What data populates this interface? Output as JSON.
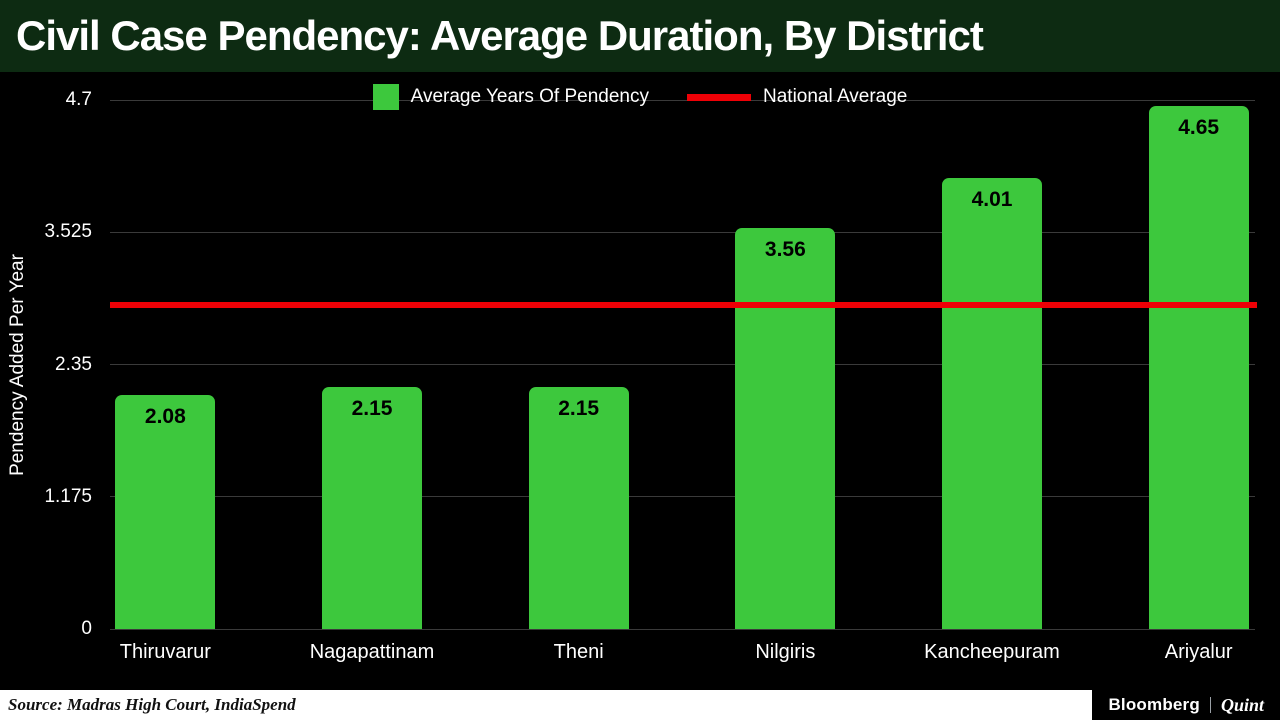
{
  "header": {
    "title": "Civil Case Pendency: Average Duration, By District"
  },
  "legend": {
    "bar_label": "Average Years Of Pendency",
    "line_label": "National Average"
  },
  "chart_data": {
    "type": "bar",
    "title": "Civil Case Pendency: Average Duration, By District",
    "ylabel": "Pendency Added Per Year",
    "categories": [
      "Thiruvarur",
      "Nagapattinam",
      "Theni",
      "Nilgiris",
      "Kancheepuram",
      "Ariyalur"
    ],
    "values": [
      2.08,
      2.15,
      2.15,
      3.56,
      4.01,
      4.65
    ],
    "value_labels": [
      "2.08",
      "2.15",
      "2.15",
      "3.56",
      "4.01",
      "4.65"
    ],
    "national_average": 2.88,
    "ylim": [
      0,
      4.7
    ],
    "ytick_values": [
      0,
      1.175,
      2.35,
      3.525,
      4.7
    ],
    "ytick_labels": [
      "0",
      "1.175",
      "2.35",
      "3.525",
      "4.7"
    ],
    "grid": true,
    "legend_position": "top",
    "colors": {
      "bar": "#3dc83d",
      "line": "#ee0006",
      "grid": "#3a3a3a",
      "background": "#000000",
      "header": "#0d2b12"
    }
  },
  "footer": {
    "source": "Source: Madras High Court, IndiaSpend",
    "brand_left": "Bloomberg",
    "brand_right": "Quint"
  }
}
